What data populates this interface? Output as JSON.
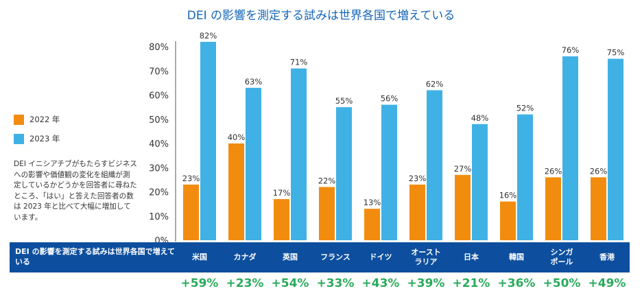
{
  "title": "DEI の影響を測定する試みは世界各国で増えている",
  "legend": [
    {
      "label": "2022 年",
      "color": "#f28c0f"
    },
    {
      "label": "2023 年",
      "color": "#40b1e5"
    }
  ],
  "note": "DEI イニシアチブがもたらすビジネスへの影響や価値観の変化を組織が測定しているかどうかを回答者に尋ねたところ、「はい」と答えた回答者の数は 2023 年と比べて大幅に増加しています。",
  "band_label": "DEI の影響を測定する試みは世界各国で増えている",
  "chart_data": {
    "type": "bar",
    "title": "DEI の影響を測定する試みは世界各国で増えている",
    "categories": [
      "米国",
      "カナダ",
      "英国",
      "フランス",
      "ドイツ",
      "オースト\nラリア",
      "日本",
      "韓国",
      "シンガ\nポール",
      "香港"
    ],
    "series": [
      {
        "name": "2022 年",
        "color": "#f28c0f",
        "values": [
          23,
          40,
          17,
          22,
          13,
          23,
          27,
          16,
          26,
          26
        ]
      },
      {
        "name": "2023 年",
        "color": "#40b1e5",
        "values": [
          82,
          63,
          71,
          55,
          56,
          62,
          48,
          52,
          76,
          75
        ]
      }
    ],
    "increase_labels": [
      "+59%",
      "+23%",
      "+54%",
      "+33%",
      "+43%",
      "+39%",
      "+21%",
      "+36%",
      "+50%",
      "+49%"
    ],
    "y_ticks": [
      0,
      10,
      20,
      30,
      40,
      50,
      60,
      70,
      80
    ],
    "y_tick_suffix": "%",
    "ylim": [
      0,
      80
    ],
    "legend_position": "left",
    "grid": false
  }
}
